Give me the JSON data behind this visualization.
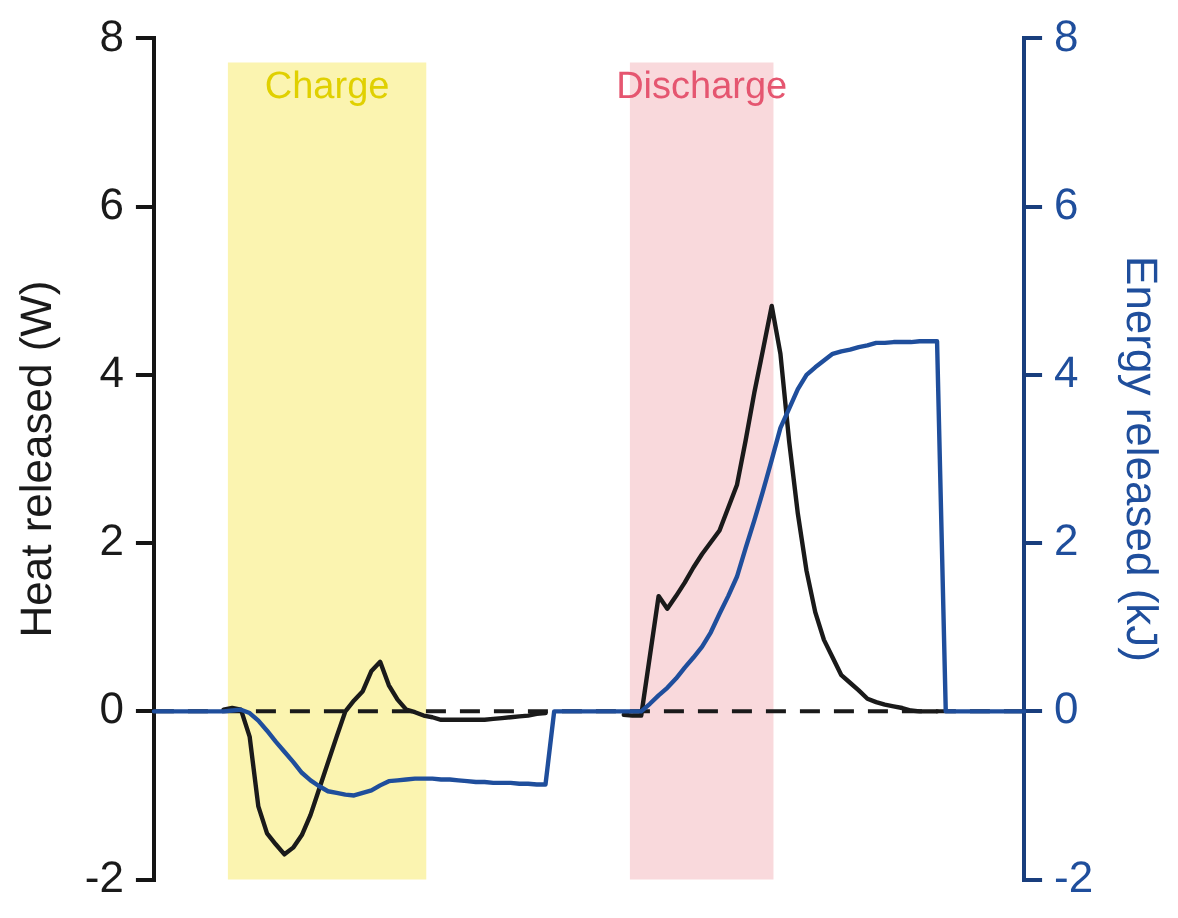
{
  "chart_data": {
    "type": "line",
    "ylabel": "Heat released (W)",
    "y2label": "Energy released (kJ)",
    "categories": [
      null,
      null,
      null,
      null,
      null,
      null,
      null,
      null,
      null,
      null,
      null,
      null,
      null,
      null,
      null,
      null,
      null,
      null,
      null,
      null,
      null,
      null,
      null,
      null,
      null,
      null,
      null,
      null,
      null,
      null,
      null,
      null,
      null,
      null,
      null,
      null,
      null,
      null,
      null,
      null,
      null,
      null,
      null,
      null,
      null,
      null,
      null,
      null,
      null,
      null,
      null,
      null,
      null,
      null,
      null,
      null,
      null,
      null,
      null,
      null,
      null,
      null,
      null,
      null,
      null,
      null,
      null,
      null,
      null,
      null,
      null,
      null,
      null,
      null,
      null,
      null,
      null,
      null,
      null,
      null,
      null,
      null,
      null,
      null,
      null,
      null,
      null,
      null,
      null,
      null,
      null,
      null,
      null,
      null,
      null,
      null,
      null,
      null,
      null,
      null,
      null
    ],
    "ylim": [
      -2,
      8
    ],
    "yticks": [
      -2,
      0,
      2,
      4,
      6,
      8
    ],
    "y2lim": [
      -2,
      8
    ],
    "y2ticks": [
      -2,
      0,
      2,
      4,
      6,
      8
    ],
    "tick_labels": "y",
    "grid": false,
    "legend": false,
    "marker": "none",
    "line_style": "solid",
    "series": [
      {
        "color": "#1a1a1a",
        "values": [
          null,
          null,
          null,
          null,
          null,
          null,
          null,
          null,
          0.02,
          0.04,
          0.02,
          -0.3,
          -1.13,
          -1.45,
          -1.58,
          -1.7,
          -1.62,
          -1.47,
          -1.23,
          -0.92,
          -0.61,
          -0.3,
          0,
          0.13,
          0.24,
          0.48,
          0.59,
          0.31,
          0.14,
          0.02,
          -0.01,
          -0.05,
          -0.07,
          -0.1,
          -0.1,
          -0.1,
          -0.1,
          -0.1,
          -0.1,
          -0.09,
          -0.08,
          -0.07,
          -0.06,
          -0.05,
          -0.03,
          -0.02,
          null,
          null,
          null,
          null,
          null,
          null,
          null,
          null,
          -0.04,
          -0.05,
          -0.05,
          0.66,
          1.37,
          1.22,
          1.37,
          1.53,
          1.71,
          1.87,
          2.01,
          2.15,
          2.42,
          2.69,
          3.22,
          3.79,
          4.3,
          4.82,
          4.25,
          3.21,
          2.35,
          1.67,
          1.18,
          0.85,
          0.64,
          0.43,
          0.34,
          0.25,
          0.15,
          0.11,
          0.08,
          0.06,
          0.04,
          0.01,
          0,
          0,
          0,
          null,
          null,
          null,
          null,
          null,
          null,
          null,
          null,
          null,
          null
        ]
      },
      {
        "color": "#1f4e9c",
        "axis": "y2",
        "values": [
          0,
          0,
          0,
          0,
          0,
          0,
          0,
          0,
          0,
          0.01,
          0.02,
          -0.02,
          -0.11,
          -0.23,
          -0.36,
          -0.48,
          -0.6,
          -0.73,
          -0.82,
          -0.89,
          -0.95,
          -0.97,
          -0.99,
          -1.0,
          -0.97,
          -0.94,
          -0.88,
          -0.83,
          -0.82,
          -0.81,
          -0.8,
          -0.8,
          -0.8,
          -0.81,
          -0.81,
          -0.82,
          -0.83,
          -0.84,
          -0.84,
          -0.85,
          -0.85,
          -0.85,
          -0.86,
          -0.86,
          -0.87,
          -0.87,
          0,
          0,
          0,
          0,
          0,
          0,
          0,
          0,
          0,
          0,
          0,
          0.09,
          0.19,
          0.28,
          0.39,
          0.52,
          0.64,
          0.77,
          0.94,
          1.16,
          1.37,
          1.6,
          1.94,
          2.27,
          2.62,
          2.99,
          3.37,
          3.6,
          3.83,
          4.0,
          4.09,
          4.17,
          4.25,
          4.28,
          4.3,
          4.33,
          4.35,
          4.38,
          4.38,
          4.39,
          4.39,
          4.39,
          4.4,
          4.4,
          4.4,
          0,
          0,
          0,
          0,
          0,
          0,
          0,
          0,
          0,
          0
        ]
      }
    ],
    "ref_lines": [
      {
        "axis": "y",
        "value": 0,
        "color": "#1a1a1a",
        "line_style": "dashed"
      }
    ],
    "annotations": [
      "Charge",
      "Discharge"
    ]
  }
}
